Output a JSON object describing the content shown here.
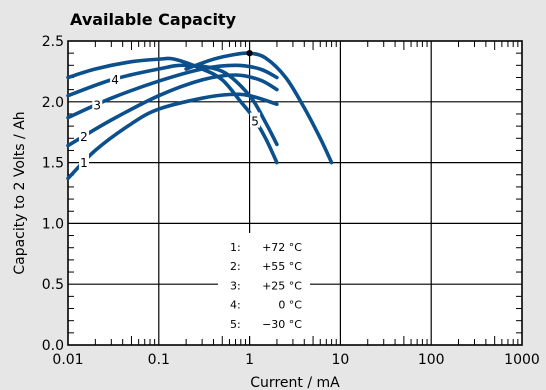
{
  "chart_data": {
    "type": "line",
    "title": "Available Capacity",
    "xlabel": "Current / mA",
    "ylabel": "Capacity to 2 Volts / Ah",
    "xscale": "log",
    "xlim": [
      0.01,
      1000
    ],
    "ylim": [
      0,
      2.5
    ],
    "xticks": [
      {
        "value": 0.01,
        "label": "0.01"
      },
      {
        "value": 0.1,
        "label": "0.1"
      },
      {
        "value": 1,
        "label": "1"
      },
      {
        "value": 10,
        "label": "10"
      },
      {
        "value": 100,
        "label": "100"
      },
      {
        "value": 1000,
        "label": "1000"
      }
    ],
    "yticks": [
      {
        "value": 0,
        "label": "0.0"
      },
      {
        "value": 0.5,
        "label": "0.5"
      },
      {
        "value": 1.0,
        "label": "1.0"
      },
      {
        "value": 1.5,
        "label": "1.5"
      },
      {
        "value": 2.0,
        "label": "2.0"
      },
      {
        "value": 2.5,
        "label": "2.5"
      }
    ],
    "grid": true,
    "line_color": "#0b4f8c",
    "series": [
      {
        "label": "1",
        "label_at": 0.015,
        "points": [
          [
            0.01,
            1.37
          ],
          [
            0.02,
            1.6
          ],
          [
            0.05,
            1.82
          ],
          [
            0.1,
            1.94
          ],
          [
            0.3,
            2.03
          ],
          [
            0.6,
            2.06
          ],
          [
            1,
            2.05
          ],
          [
            2,
            1.98
          ]
        ]
      },
      {
        "label": "2",
        "label_at": 0.015,
        "points": [
          [
            0.01,
            1.64
          ],
          [
            0.03,
            1.85
          ],
          [
            0.1,
            2.05
          ],
          [
            0.3,
            2.18
          ],
          [
            0.7,
            2.22
          ],
          [
            1.3,
            2.18
          ],
          [
            2,
            2.1
          ]
        ]
      },
      {
        "label": "3",
        "label_at": 0.021,
        "points": [
          [
            0.01,
            1.87
          ],
          [
            0.03,
            2.03
          ],
          [
            0.1,
            2.17
          ],
          [
            0.3,
            2.27
          ],
          [
            0.7,
            2.3
          ],
          [
            1.3,
            2.27
          ],
          [
            2,
            2.2
          ]
        ]
      },
      {
        "label": "4",
        "label_at": 0.033,
        "points": [
          [
            0.01,
            2.05
          ],
          [
            0.03,
            2.18
          ],
          [
            0.1,
            2.27
          ],
          [
            0.2,
            2.3
          ],
          [
            0.5,
            2.25
          ],
          [
            1,
            2.05
          ],
          [
            1.5,
            1.83
          ],
          [
            2,
            1.65
          ]
        ]
      },
      {
        "label": "5",
        "label_at": 1.15,
        "points": [
          [
            0.01,
            2.2
          ],
          [
            0.02,
            2.27
          ],
          [
            0.05,
            2.33
          ],
          [
            0.1,
            2.35
          ],
          [
            0.15,
            2.35
          ],
          [
            0.3,
            2.27
          ],
          [
            0.5,
            2.18
          ],
          [
            0.8,
            2.0
          ],
          [
            1.1,
            1.87
          ],
          [
            1.5,
            1.7
          ],
          [
            2,
            1.5
          ]
        ]
      },
      {
        "label": "",
        "label_at": null,
        "points": [
          [
            0.2,
            2.27
          ],
          [
            0.4,
            2.35
          ],
          [
            0.7,
            2.39
          ],
          [
            1,
            2.4
          ],
          [
            1.5,
            2.36
          ],
          [
            2.5,
            2.2
          ],
          [
            4,
            1.95
          ],
          [
            6,
            1.7
          ],
          [
            8,
            1.5
          ]
        ]
      }
    ],
    "marker": {
      "x": 1,
      "y": 2.4
    },
    "legend": {
      "placement": "bottom-center",
      "entries": [
        {
          "key": "1:",
          "value": "+72 °C"
        },
        {
          "key": "2:",
          "value": "+55 °C"
        },
        {
          "key": "3:",
          "value": "+25 °C"
        },
        {
          "key": "4:",
          "value": "0 °C"
        },
        {
          "key": "5:",
          "value": "−30 °C"
        }
      ]
    }
  }
}
